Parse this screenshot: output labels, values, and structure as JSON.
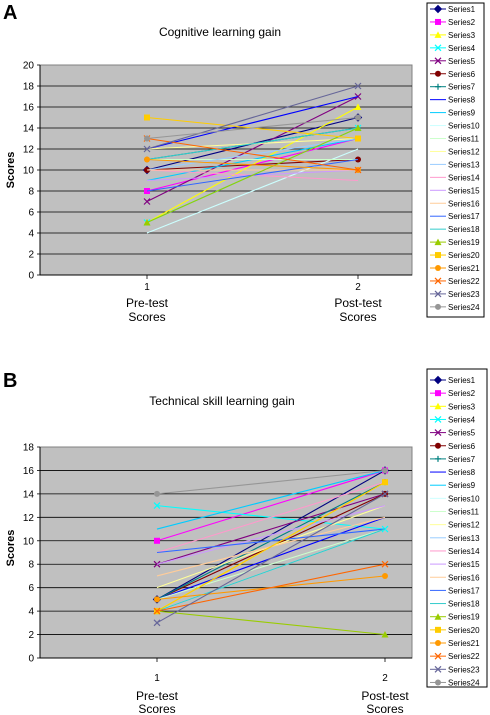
{
  "chart_data": [
    {
      "panel_label": "A",
      "type": "line",
      "title": "Cognitive learning gain",
      "xlabel": "",
      "ylabel": "Scores",
      "categories": [
        "1",
        "2"
      ],
      "category_labels": [
        [
          "Pre-test",
          "Scores"
        ],
        [
          "Post-test",
          "Scores"
        ]
      ],
      "ylim": [
        0,
        20
      ],
      "y_ticks": [
        0,
        2,
        4,
        6,
        8,
        10,
        12,
        14,
        16,
        18,
        20
      ],
      "grid": true,
      "plot_background": "#c0c0c0",
      "legend_position": "right",
      "series": [
        {
          "name": "Series1",
          "color": "#000080",
          "marker": "diamond",
          "values": [
            10,
            15
          ]
        },
        {
          "name": "Series2",
          "color": "#ff00ff",
          "marker": "square",
          "values": [
            8,
            13
          ]
        },
        {
          "name": "Series3",
          "color": "#ffff00",
          "marker": "triangle",
          "values": [
            5,
            16
          ]
        },
        {
          "name": "Series4",
          "color": "#00ffff",
          "marker": "x",
          "values": [
            5,
            14
          ]
        },
        {
          "name": "Series5",
          "color": "#800080",
          "marker": "x",
          "values": [
            7,
            17
          ]
        },
        {
          "name": "Series6",
          "color": "#800000",
          "marker": "circle",
          "values": [
            10,
            11
          ]
        },
        {
          "name": "Series7",
          "color": "#008080",
          "marker": "plus",
          "values": [
            11,
            14
          ]
        },
        {
          "name": "Series8",
          "color": "#0000ff",
          "marker": "none",
          "values": [
            12,
            17
          ]
        },
        {
          "name": "Series9",
          "color": "#00ccff",
          "marker": "none",
          "values": [
            9,
            13
          ]
        },
        {
          "name": "Series10",
          "color": "#ccffff",
          "marker": "none",
          "values": [
            4,
            12
          ]
        },
        {
          "name": "Series11",
          "color": "#ccffcc",
          "marker": "none",
          "values": [
            11,
            11
          ]
        },
        {
          "name": "Series12",
          "color": "#ffff99",
          "marker": "none",
          "values": [
            12,
            13
          ]
        },
        {
          "name": "Series13",
          "color": "#99ccff",
          "marker": "none",
          "values": [
            10,
            13
          ]
        },
        {
          "name": "Series14",
          "color": "#ff99cc",
          "marker": "none",
          "values": [
            10,
            9
          ]
        },
        {
          "name": "Series15",
          "color": "#cc99ff",
          "marker": "none",
          "values": [
            9,
            10
          ]
        },
        {
          "name": "Series16",
          "color": "#ffcc99",
          "marker": "none",
          "values": [
            10,
            10
          ]
        },
        {
          "name": "Series17",
          "color": "#3366ff",
          "marker": "none",
          "values": [
            8,
            11
          ]
        },
        {
          "name": "Series18",
          "color": "#33cccc",
          "marker": "none",
          "values": [
            11,
            14
          ]
        },
        {
          "name": "Series19",
          "color": "#99cc00",
          "marker": "triangle",
          "values": [
            5,
            14
          ]
        },
        {
          "name": "Series20",
          "color": "#ffcc00",
          "marker": "square",
          "values": [
            15,
            13
          ]
        },
        {
          "name": "Series21",
          "color": "#ff9900",
          "marker": "circle",
          "values": [
            11,
            10
          ]
        },
        {
          "name": "Series22",
          "color": "#ff6600",
          "marker": "x",
          "values": [
            13,
            10
          ]
        },
        {
          "name": "Series23",
          "color": "#666699",
          "marker": "x",
          "values": [
            12,
            18
          ]
        },
        {
          "name": "Series24",
          "color": "#969696",
          "marker": "circle",
          "values": [
            13,
            15
          ]
        }
      ]
    },
    {
      "panel_label": "B",
      "type": "line",
      "title": "Technical skill learning gain",
      "xlabel": "",
      "ylabel": "Scores",
      "categories": [
        "1",
        "2"
      ],
      "category_labels": [
        [
          "Pre-test",
          "Scores"
        ],
        [
          "Post-test",
          "Scores"
        ]
      ],
      "ylim": [
        0,
        18
      ],
      "y_ticks": [
        0,
        2,
        4,
        6,
        8,
        10,
        12,
        14,
        16,
        18
      ],
      "grid": true,
      "plot_background": "#c0c0c0",
      "legend_position": "right",
      "series": [
        {
          "name": "Series1",
          "color": "#000080",
          "marker": "diamond",
          "values": [
            5,
            16
          ]
        },
        {
          "name": "Series2",
          "color": "#ff00ff",
          "marker": "square",
          "values": [
            10,
            16
          ]
        },
        {
          "name": "Series3",
          "color": "#ffff00",
          "marker": "triangle",
          "values": [
            4,
            15
          ]
        },
        {
          "name": "Series4",
          "color": "#00ffff",
          "marker": "x",
          "values": [
            13,
            11
          ]
        },
        {
          "name": "Series5",
          "color": "#800080",
          "marker": "x",
          "values": [
            8,
            14
          ]
        },
        {
          "name": "Series6",
          "color": "#800000",
          "marker": "circle",
          "values": [
            5,
            14
          ]
        },
        {
          "name": "Series7",
          "color": "#008080",
          "marker": "plus",
          "values": [
            5,
            15
          ]
        },
        {
          "name": "Series8",
          "color": "#0000ff",
          "marker": "none",
          "values": [
            5,
            12
          ]
        },
        {
          "name": "Series9",
          "color": "#00ccff",
          "marker": "none",
          "values": [
            11,
            16
          ]
        },
        {
          "name": "Series10",
          "color": "#ccffff",
          "marker": "none",
          "values": [
            4,
            11
          ]
        },
        {
          "name": "Series11",
          "color": "#ccffcc",
          "marker": "none",
          "values": [
            5,
            11
          ]
        },
        {
          "name": "Series12",
          "color": "#ffff99",
          "marker": "none",
          "values": [
            6,
            13
          ]
        },
        {
          "name": "Series13",
          "color": "#99ccff",
          "marker": "none",
          "values": [
            9,
            11
          ]
        },
        {
          "name": "Series14",
          "color": "#ff99cc",
          "marker": "none",
          "values": [
            9,
            15
          ]
        },
        {
          "name": "Series15",
          "color": "#cc99ff",
          "marker": "none",
          "values": [
            8,
            13
          ]
        },
        {
          "name": "Series16",
          "color": "#ffcc99",
          "marker": "none",
          "values": [
            7,
            12
          ]
        },
        {
          "name": "Series17",
          "color": "#3366ff",
          "marker": "none",
          "values": [
            9,
            11
          ]
        },
        {
          "name": "Series18",
          "color": "#33cccc",
          "marker": "none",
          "values": [
            4,
            11
          ]
        },
        {
          "name": "Series19",
          "color": "#99cc00",
          "marker": "triangle",
          "values": [
            4,
            2
          ]
        },
        {
          "name": "Series20",
          "color": "#ffcc00",
          "marker": "square",
          "values": [
            4,
            15
          ]
        },
        {
          "name": "Series21",
          "color": "#ff9900",
          "marker": "circle",
          "values": [
            5,
            7
          ]
        },
        {
          "name": "Series22",
          "color": "#ff6600",
          "marker": "x",
          "values": [
            4,
            8
          ]
        },
        {
          "name": "Series23",
          "color": "#666699",
          "marker": "x",
          "values": [
            3,
            14
          ]
        },
        {
          "name": "Series24",
          "color": "#969696",
          "marker": "circle",
          "values": [
            14,
            16
          ]
        }
      ]
    }
  ]
}
